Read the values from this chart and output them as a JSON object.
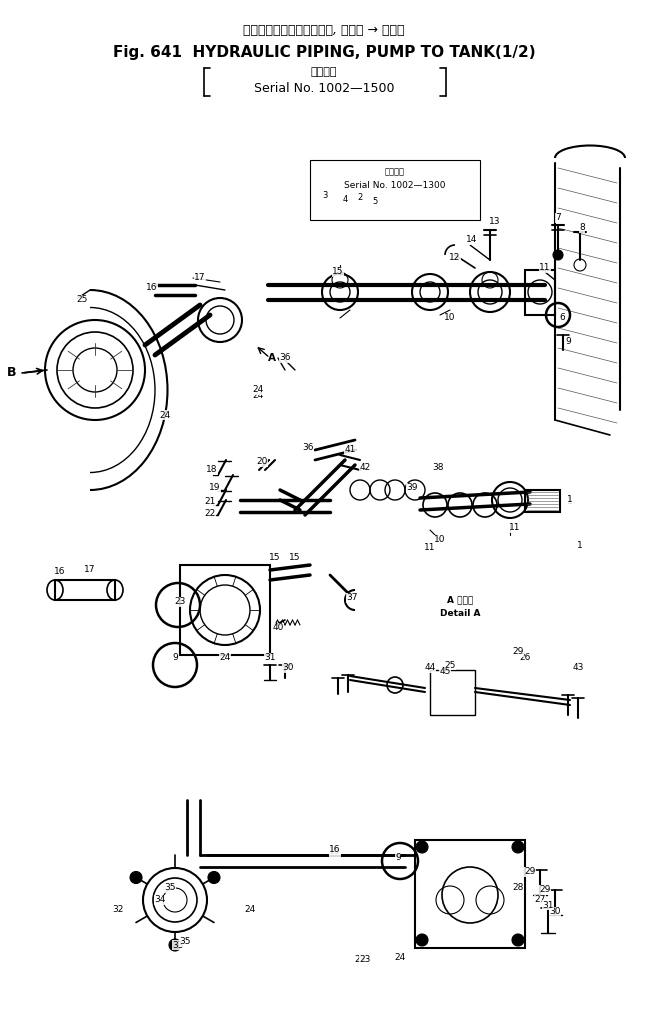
{
  "title_japanese": "ハイドロリックパイピング, ポンプ → タンク",
  "title_english": "Fig. 641  HYDRAULIC PIPING, PUMP TO TANK(1/2)",
  "serial_label": "適用号機",
  "serial_number": "Serial No. 1002—1500",
  "serial_inner_label": "適用号機",
  "serial_inner": "Serial No. 1002—1300",
  "detail_a_japanese": "A 詳細図",
  "detail_a_english": "Detail A",
  "bg_color": "#ffffff",
  "line_color": "#000000",
  "text_color": "#000000",
  "figsize": [
    6.49,
    10.14
  ],
  "dpi": 100
}
